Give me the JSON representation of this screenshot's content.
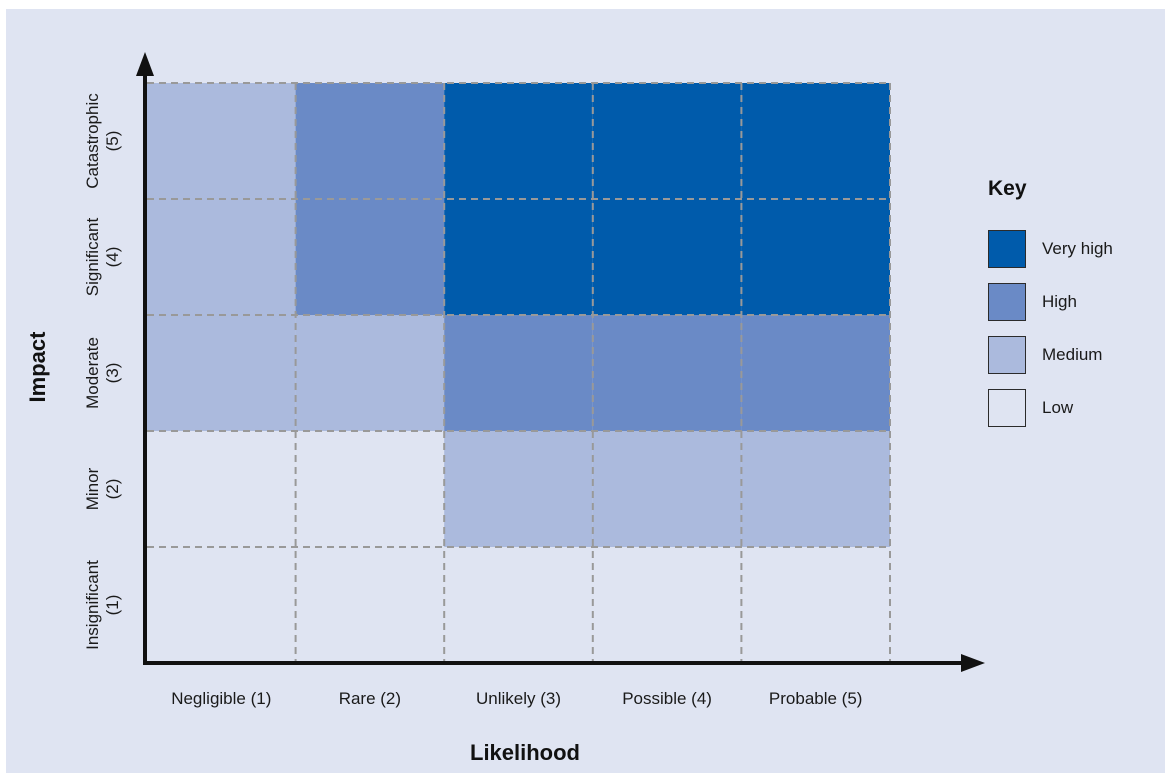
{
  "chart_data": {
    "type": "heatmap",
    "title": "",
    "xlabel": "Likelihood",
    "ylabel": "Impact",
    "x_categories": [
      "Negligible (1)",
      "Rare (2)",
      "Unlikely (3)",
      "Possible (4)",
      "Probable (5)"
    ],
    "y_categories": [
      {
        "name": "Insignificant",
        "score": "(1)"
      },
      {
        "name": "Minor",
        "score": "(2)"
      },
      {
        "name": "Moderate",
        "score": "(3)"
      },
      {
        "name": "Significant",
        "score": "(4)"
      },
      {
        "name": "Catastrophic",
        "score": "(5)"
      }
    ],
    "cells": [
      [
        "Low",
        "Low",
        "Low",
        "Low",
        "Low"
      ],
      [
        "Low",
        "Low",
        "Medium",
        "Medium",
        "Medium"
      ],
      [
        "Medium",
        "Medium",
        "High",
        "High",
        "High"
      ],
      [
        "Medium",
        "High",
        "Very high",
        "Very high",
        "Very high"
      ],
      [
        "Medium",
        "High",
        "Very high",
        "Very high",
        "Very high"
      ]
    ],
    "legend": {
      "title": "Key",
      "placement": "right",
      "items": [
        {
          "label": "Very high",
          "color": "#005bab"
        },
        {
          "label": "High",
          "color": "#6a8ac6"
        },
        {
          "label": "Medium",
          "color": "#abbadd"
        },
        {
          "label": "Low",
          "color": "#dfe4f2"
        }
      ]
    },
    "grid": true,
    "colors": {
      "background": "#dfe4f2",
      "grid_line": "#999999",
      "axis": "#111111"
    }
  }
}
